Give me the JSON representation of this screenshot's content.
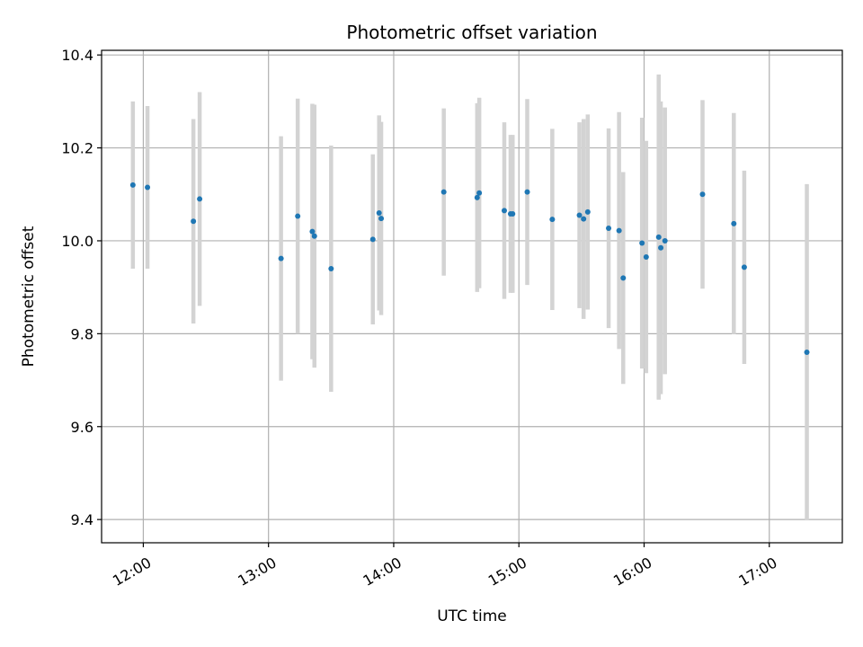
{
  "chart_data": {
    "type": "scatter",
    "title": "Photometric offset variation",
    "xlabel": "UTC time",
    "ylabel": "Photometric offset",
    "x_axis": {
      "type": "time",
      "range": [
        "11:40",
        "17:35"
      ]
    },
    "ylim": [
      9.35,
      10.41
    ],
    "yticks": [
      9.4,
      9.6,
      9.8,
      10.0,
      10.2,
      10.4
    ],
    "ytick_labels": [
      "9.4",
      "9.6",
      "9.8",
      "10.0",
      "10.2",
      "10.4"
    ],
    "xticks": [
      "12:00",
      "13:00",
      "14:00",
      "15:00",
      "16:00",
      "17:00"
    ],
    "grid": true,
    "marker_color": "#1f77b4",
    "errorbar_color": "#d3d3d3",
    "series": [
      {
        "points": [
          {
            "x": "11:55",
            "y": 10.12,
            "err": 0.18
          },
          {
            "x": "12:02",
            "y": 10.115,
            "err": 0.175
          },
          {
            "x": "12:24",
            "y": 10.042,
            "err": 0.22
          },
          {
            "x": "12:27",
            "y": 10.09,
            "err": 0.23
          },
          {
            "x": "13:06",
            "y": 9.962,
            "err": 0.263
          },
          {
            "x": "13:14",
            "y": 10.053,
            "err": 0.253
          },
          {
            "x": "13:21",
            "y": 10.02,
            "err": 0.275
          },
          {
            "x": "13:22",
            "y": 10.01,
            "err": 0.283
          },
          {
            "x": "13:30",
            "y": 9.94,
            "err": 0.265
          },
          {
            "x": "13:50",
            "y": 10.003,
            "err": 0.183
          },
          {
            "x": "13:53",
            "y": 10.06,
            "err": 0.21
          },
          {
            "x": "13:54",
            "y": 10.048,
            "err": 0.208
          },
          {
            "x": "14:24",
            "y": 10.105,
            "err": 0.18
          },
          {
            "x": "14:40",
            "y": 10.093,
            "err": 0.203
          },
          {
            "x": "14:41",
            "y": 10.103,
            "err": 0.205
          },
          {
            "x": "14:53",
            "y": 10.065,
            "err": 0.19
          },
          {
            "x": "14:56",
            "y": 10.058,
            "err": 0.17
          },
          {
            "x": "14:57",
            "y": 10.058,
            "err": 0.17
          },
          {
            "x": "15:04",
            "y": 10.105,
            "err": 0.2
          },
          {
            "x": "15:16",
            "y": 10.046,
            "err": 0.195
          },
          {
            "x": "15:29",
            "y": 10.055,
            "err": 0.2
          },
          {
            "x": "15:31",
            "y": 10.047,
            "err": 0.215
          },
          {
            "x": "15:33",
            "y": 10.062,
            "err": 0.21
          },
          {
            "x": "15:43",
            "y": 10.027,
            "err": 0.215
          },
          {
            "x": "15:48",
            "y": 10.022,
            "err": 0.255
          },
          {
            "x": "15:50",
            "y": 9.92,
            "err": 0.228
          },
          {
            "x": "15:59",
            "y": 9.995,
            "err": 0.27
          },
          {
            "x": "16:01",
            "y": 9.965,
            "err": 0.25
          },
          {
            "x": "16:07",
            "y": 10.008,
            "err": 0.35
          },
          {
            "x": "16:08",
            "y": 9.985,
            "err": 0.315
          },
          {
            "x": "16:10",
            "y": 10.0,
            "err": 0.287
          },
          {
            "x": "16:28",
            "y": 10.1,
            "err": 0.203
          },
          {
            "x": "16:43",
            "y": 10.037,
            "err": 0.238
          },
          {
            "x": "16:48",
            "y": 9.943,
            "err": 0.208
          },
          {
            "x": "17:18",
            "y": 9.76,
            "err": 0.362
          }
        ]
      }
    ]
  }
}
